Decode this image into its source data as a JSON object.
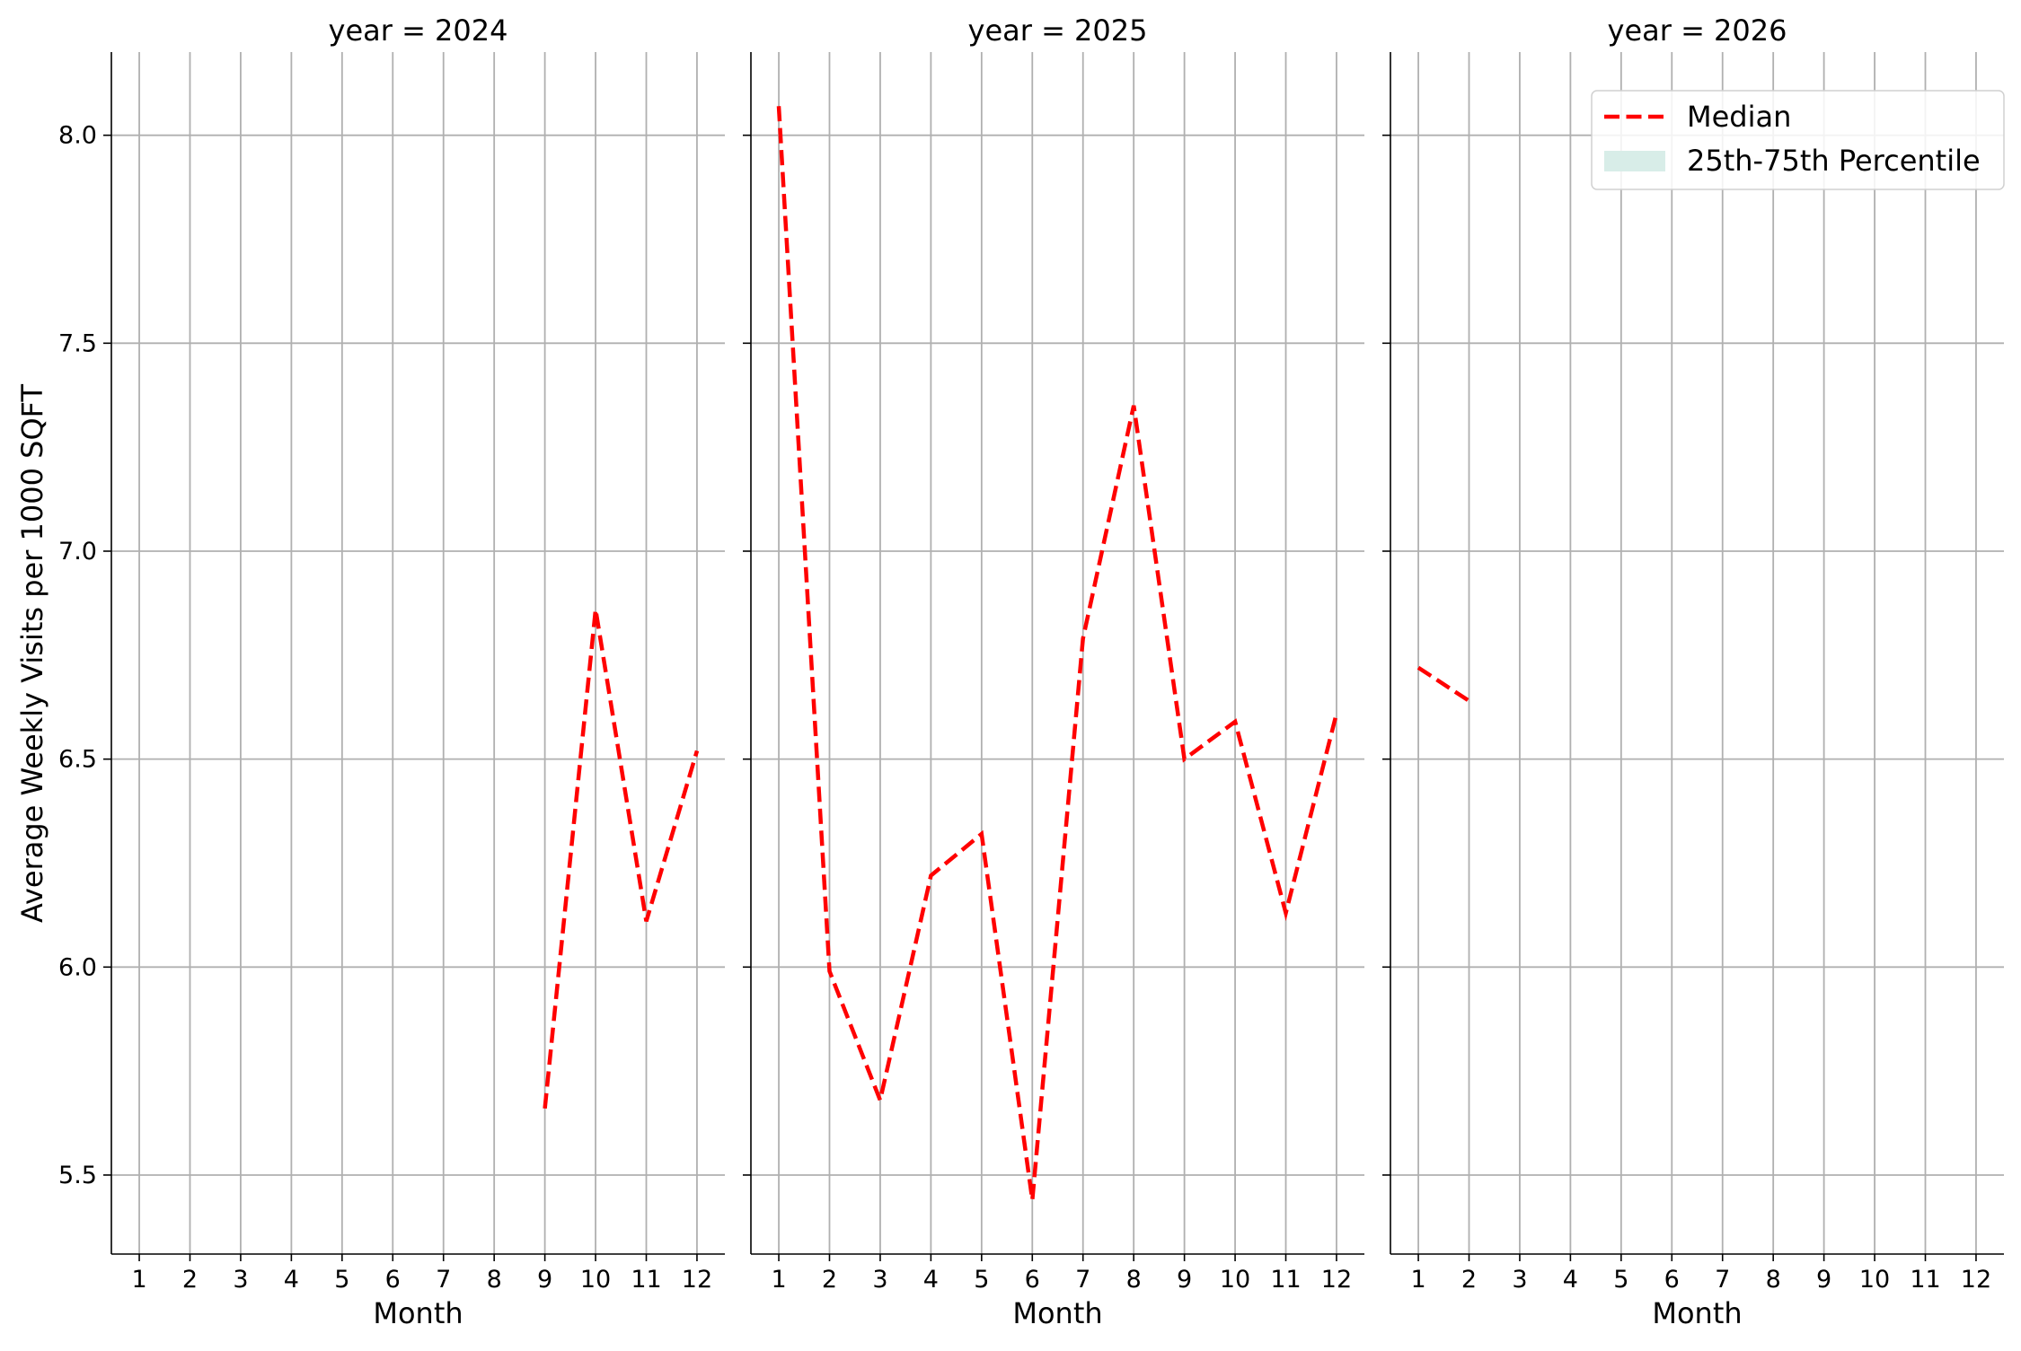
{
  "chart_data": {
    "type": "line",
    "ylabel": "Average Weekly Visits per 1000 SQFT",
    "xlabel": "Month",
    "x_ticks": [
      1,
      2,
      3,
      4,
      5,
      6,
      7,
      8,
      9,
      10,
      11,
      12
    ],
    "y_ticks": [
      "5.5",
      "6.0",
      "6.5",
      "7.0",
      "7.5",
      "8.0"
    ],
    "ylim": [
      5.31,
      8.2
    ],
    "xlim": [
      0.45,
      12.55
    ],
    "grid": true,
    "shared_y": true,
    "legend_placement": "top-right",
    "legend": [
      {
        "label": "Median",
        "style": "dashed-line",
        "color": "#ff0000"
      },
      {
        "label": "25th-75th Percentile",
        "style": "band",
        "color": "#d8ede8"
      }
    ],
    "panels": [
      {
        "title": "year = 2024",
        "series": [
          {
            "name": "Median",
            "x": [
              9,
              10,
              11,
              12
            ],
            "y": [
              5.66,
              6.86,
              6.11,
              6.52
            ]
          }
        ]
      },
      {
        "title": "year = 2025",
        "series": [
          {
            "name": "Median",
            "x": [
              1,
              2,
              3,
              4,
              5,
              6,
              7,
              8,
              9,
              10,
              11,
              12
            ],
            "y": [
              8.07,
              5.99,
              5.68,
              6.22,
              6.32,
              5.44,
              6.79,
              7.35,
              6.5,
              6.59,
              6.13,
              6.61
            ]
          }
        ]
      },
      {
        "title": "year = 2026",
        "series": [
          {
            "name": "Median",
            "x": [
              1,
              2
            ],
            "y": [
              6.72,
              6.64
            ]
          }
        ]
      }
    ]
  }
}
